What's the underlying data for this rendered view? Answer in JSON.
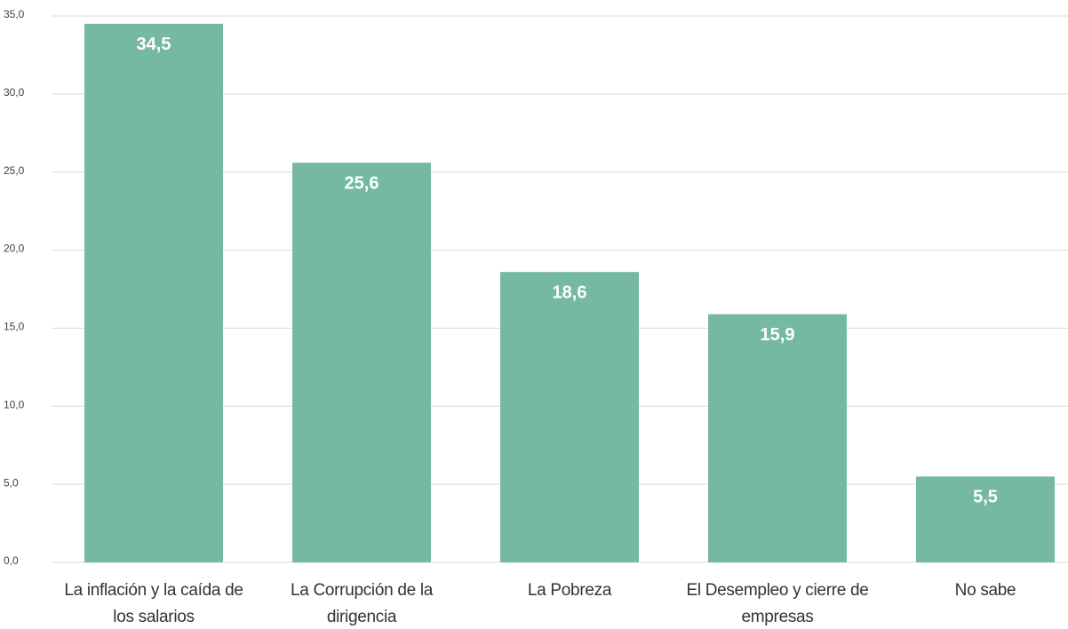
{
  "chart_data": {
    "type": "bar",
    "categories": [
      "La inflación y la caída de los salarios",
      "La Corrupción de la dirigencia",
      "La Pobreza",
      "El Desempleo y cierre de empresas",
      "No sabe"
    ],
    "values": [
      34.5,
      25.6,
      18.6,
      15.9,
      5.5
    ],
    "value_labels": [
      "34,5",
      "25,6",
      "18,6",
      "15,9",
      "5,5"
    ],
    "color": "#75b9a3",
    "ylim": [
      0,
      35
    ],
    "yticks": [
      {
        "value": 0,
        "label": "0,0"
      },
      {
        "value": 5,
        "label": "5,0"
      },
      {
        "value": 10,
        "label": "10,0"
      },
      {
        "value": 15,
        "label": "15,0"
      },
      {
        "value": 20,
        "label": "20,0"
      },
      {
        "value": 25,
        "label": "25,0"
      },
      {
        "value": 30,
        "label": "30,0"
      },
      {
        "value": 35,
        "label": "35,0"
      }
    ],
    "grid": true
  }
}
